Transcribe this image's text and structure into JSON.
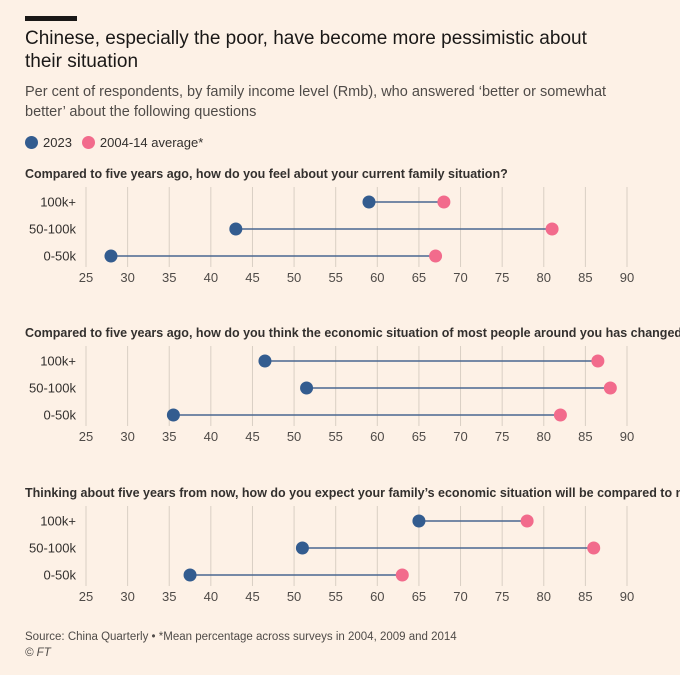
{
  "title": "Chinese, especially the poor, have become more pessimistic about their situation",
  "subtitle": "Per cent of respondents, by family income level (Rmb), who answered ‘better or somewhat better’ about the following questions",
  "legend": [
    {
      "label": "2023",
      "color": "#335c8f"
    },
    {
      "label": "2004-14 average*",
      "color": "#f26b8c"
    }
  ],
  "source": "Source: China Quarterly • *Mean percentage across surveys in 2004, 2009 and 2014",
  "copyright": "© FT",
  "chart_data": [
    {
      "type": "dumbbell",
      "title": "Compared to five years ago, how do you feel about your current family situation?",
      "categories": [
        "100k+",
        "50-100k",
        "0-50k"
      ],
      "xlim": [
        25,
        90
      ],
      "xticks": [
        25,
        30,
        35,
        40,
        45,
        50,
        55,
        60,
        65,
        70,
        75,
        80,
        85,
        90
      ],
      "series": [
        {
          "name": "2023",
          "values": [
            59,
            43,
            28
          ]
        },
        {
          "name": "2004-14 average*",
          "values": [
            68,
            81,
            67
          ]
        }
      ]
    },
    {
      "type": "dumbbell",
      "title": "Compared to five years ago, how do you think the economic situation of most people around you has changed?",
      "categories": [
        "100k+",
        "50-100k",
        "0-50k"
      ],
      "xlim": [
        25,
        90
      ],
      "xticks": [
        25,
        30,
        35,
        40,
        45,
        50,
        55,
        60,
        65,
        70,
        75,
        80,
        85,
        90
      ],
      "series": [
        {
          "name": "2023",
          "values": [
            46.5,
            51.5,
            35.5
          ]
        },
        {
          "name": "2004-14 average*",
          "values": [
            86.5,
            88,
            82
          ]
        }
      ]
    },
    {
      "type": "dumbbell",
      "title": "Thinking about five years from now, how do you expect your family’s economic situation will be compared to now?",
      "categories": [
        "100k+",
        "50-100k",
        "0-50k"
      ],
      "xlim": [
        25,
        90
      ],
      "xticks": [
        25,
        30,
        35,
        40,
        45,
        50,
        55,
        60,
        65,
        70,
        75,
        80,
        85,
        90
      ],
      "series": [
        {
          "name": "2023",
          "values": [
            65,
            51,
            37.5
          ]
        },
        {
          "name": "2004-14 average*",
          "values": [
            78,
            86,
            63
          ]
        }
      ]
    }
  ]
}
